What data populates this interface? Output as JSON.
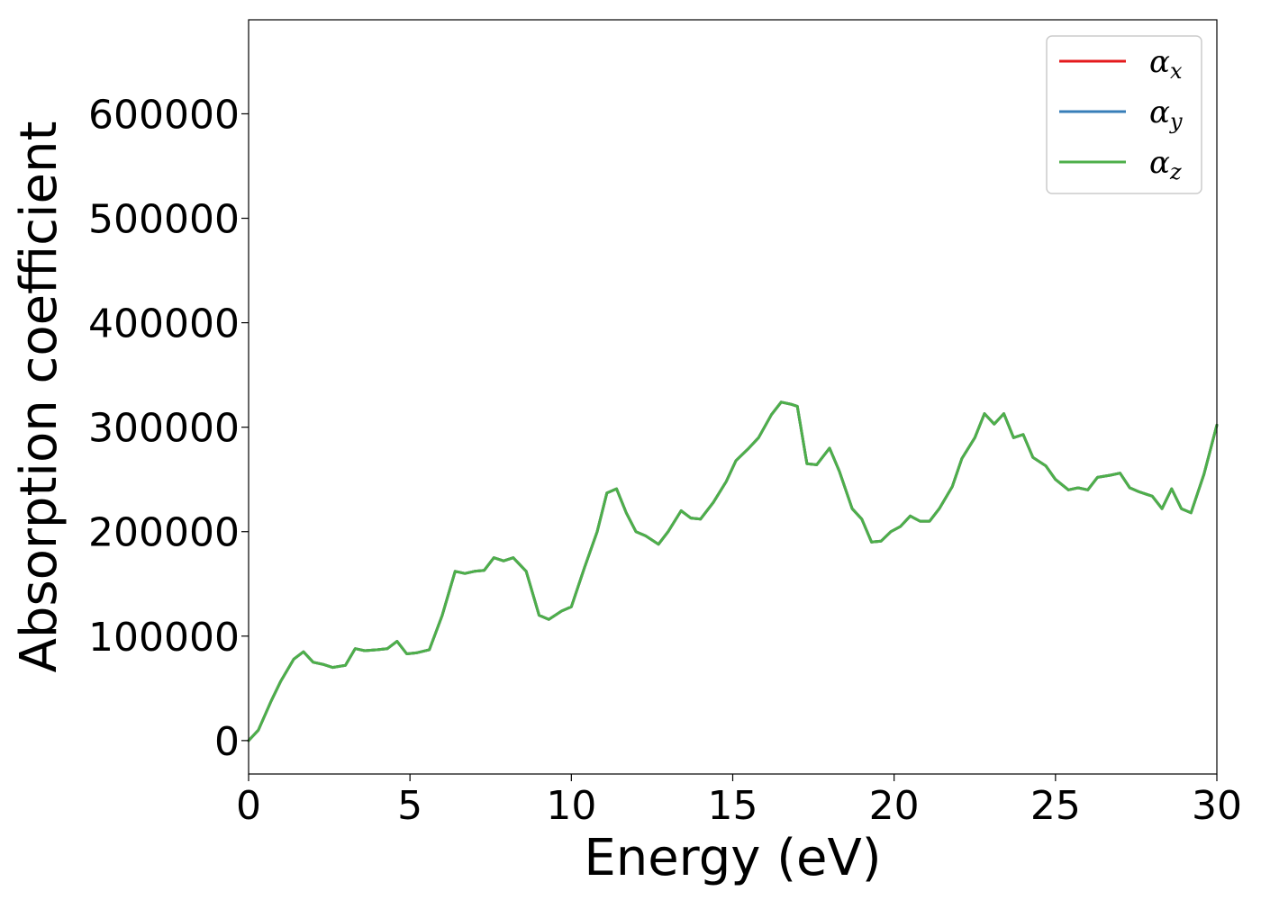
{
  "chart_data": {
    "type": "line",
    "title": "",
    "xlabel": "Energy (eV)",
    "ylabel": "Absorption coefficient",
    "xlim": [
      0,
      30
    ],
    "ylim": [
      -32000,
      690000
    ],
    "xticks": [
      0,
      5,
      10,
      15,
      20,
      25,
      30
    ],
    "yticks": [
      0,
      100000,
      200000,
      300000,
      400000,
      500000,
      600000
    ],
    "xtick_labels": [
      "0",
      "5",
      "10",
      "15",
      "20",
      "25",
      "30"
    ],
    "ytick_labels": [
      "0",
      "100000",
      "200000",
      "300000",
      "400000",
      "500000",
      "600000"
    ],
    "grid": false,
    "legend": {
      "position": "top-right",
      "entries": [
        "αx",
        "αy",
        "αz"
      ]
    },
    "x": [
      0,
      0.3,
      0.7,
      1.0,
      1.4,
      1.7,
      2.0,
      2.3,
      2.6,
      3.0,
      3.3,
      3.6,
      4.0,
      4.3,
      4.6,
      4.9,
      5.2,
      5.6,
      6.0,
      6.4,
      6.7,
      7.0,
      7.3,
      7.6,
      7.9,
      8.2,
      8.6,
      9.0,
      9.3,
      9.7,
      10.0,
      10.4,
      10.8,
      11.1,
      11.4,
      11.7,
      12.0,
      12.3,
      12.7,
      13.0,
      13.4,
      13.7,
      14.0,
      14.4,
      14.8,
      15.1,
      15.5,
      15.8,
      16.2,
      16.5,
      16.8,
      17.0,
      17.3,
      17.6,
      18.0,
      18.3,
      18.7,
      19.0,
      19.3,
      19.6,
      19.9,
      20.2,
      20.5,
      20.8,
      21.1,
      21.4,
      21.8,
      22.1,
      22.5,
      22.8,
      23.1,
      23.4,
      23.7,
      24.0,
      24.3,
      24.7,
      25.0,
      25.4,
      25.7,
      26.0,
      26.3,
      26.7,
      27.0,
      27.3,
      27.6,
      28.0,
      28.3,
      28.6,
      28.9,
      29.2,
      29.6,
      30.0
    ],
    "series": [
      {
        "name": "αx",
        "color": "#e41a1c",
        "values": [
          0,
          10000,
          38000,
          57000,
          78000,
          85000,
          75000,
          73000,
          70000,
          72000,
          88000,
          86000,
          87000,
          88000,
          95000,
          83000,
          84000,
          87000,
          120000,
          162000,
          160000,
          162000,
          163000,
          175000,
          172000,
          175000,
          162000,
          120000,
          116000,
          124000,
          128000,
          165000,
          200000,
          237000,
          241000,
          218000,
          200000,
          196000,
          188000,
          200000,
          220000,
          213000,
          212000,
          228000,
          248000,
          268000,
          280000,
          290000,
          312000,
          324000,
          322000,
          320000,
          265000,
          264000,
          280000,
          258000,
          222000,
          212000,
          190000,
          191000,
          200000,
          205000,
          215000,
          210000,
          210000,
          222000,
          243000,
          270000,
          290000,
          313000,
          303000,
          313000,
          290000,
          293000,
          271000,
          263000,
          250000,
          240000,
          242000,
          240000,
          252000,
          254000,
          256000,
          242000,
          238000,
          234000,
          222000,
          241000,
          222000,
          218000,
          255000,
          302000
        ]
      },
      {
        "name": "αy",
        "color": "#377eb8",
        "values": [
          0,
          10000,
          38000,
          57000,
          78000,
          85000,
          75000,
          73000,
          70000,
          72000,
          88000,
          86000,
          87000,
          88000,
          95000,
          83000,
          84000,
          87000,
          120000,
          162000,
          160000,
          162000,
          163000,
          175000,
          172000,
          175000,
          162000,
          120000,
          116000,
          124000,
          128000,
          165000,
          200000,
          237000,
          241000,
          218000,
          200000,
          196000,
          188000,
          200000,
          220000,
          213000,
          212000,
          228000,
          248000,
          268000,
          280000,
          290000,
          312000,
          324000,
          322000,
          320000,
          265000,
          264000,
          280000,
          258000,
          222000,
          212000,
          190000,
          191000,
          200000,
          205000,
          215000,
          210000,
          210000,
          222000,
          243000,
          270000,
          290000,
          313000,
          303000,
          313000,
          290000,
          293000,
          271000,
          263000,
          250000,
          240000,
          242000,
          240000,
          252000,
          254000,
          256000,
          242000,
          238000,
          234000,
          222000,
          241000,
          222000,
          218000,
          255000,
          302000
        ]
      },
      {
        "name": "αz",
        "color": "#4daf4a",
        "values": [
          0,
          10000,
          38000,
          57000,
          78000,
          85000,
          75000,
          73000,
          70000,
          72000,
          88000,
          86000,
          87000,
          88000,
          95000,
          83000,
          84000,
          87000,
          120000,
          162000,
          160000,
          162000,
          163000,
          175000,
          172000,
          175000,
          162000,
          120000,
          116000,
          124000,
          128000,
          165000,
          200000,
          237000,
          241000,
          218000,
          200000,
          196000,
          188000,
          200000,
          220000,
          213000,
          212000,
          228000,
          248000,
          268000,
          280000,
          290000,
          312000,
          324000,
          322000,
          320000,
          265000,
          264000,
          280000,
          258000,
          222000,
          212000,
          190000,
          191000,
          200000,
          205000,
          215000,
          210000,
          210000,
          222000,
          243000,
          270000,
          290000,
          313000,
          303000,
          313000,
          290000,
          293000,
          271000,
          263000,
          250000,
          240000,
          242000,
          240000,
          252000,
          254000,
          256000,
          242000,
          238000,
          234000,
          222000,
          241000,
          222000,
          218000,
          255000,
          302000
        ]
      }
    ]
  }
}
